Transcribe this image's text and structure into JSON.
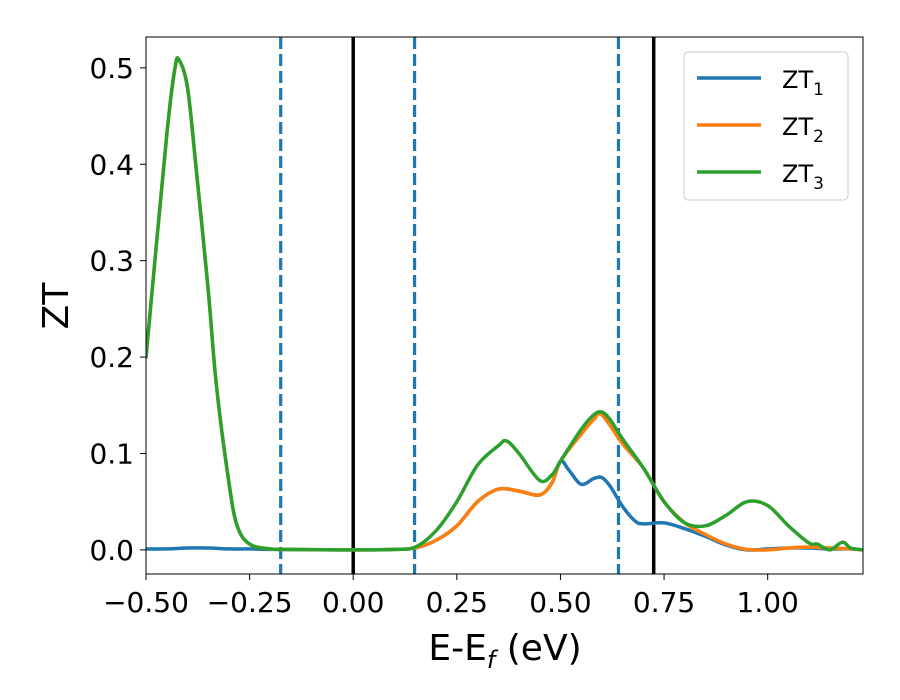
{
  "chart_data": {
    "type": "line",
    "xlabel": "E-E",
    "xlabel_sub": "f",
    "xlabel_unit": " (eV)",
    "ylabel": "ZT",
    "xlim": [
      -0.5,
      1.23
    ],
    "ylim": [
      -0.025,
      0.532
    ],
    "xticks": [
      -0.5,
      -0.25,
      0.0,
      0.25,
      0.5,
      0.75,
      1.0
    ],
    "xtick_labels": [
      "−0.50",
      "−0.25",
      "0.00",
      "0.25",
      "0.50",
      "0.75",
      "1.00"
    ],
    "yticks": [
      0.0,
      0.1,
      0.2,
      0.3,
      0.4,
      0.5
    ],
    "ytick_labels": [
      "0.0",
      "0.1",
      "0.2",
      "0.3",
      "0.4",
      "0.5"
    ],
    "grid": false,
    "legend_position": "top-right",
    "series": [
      {
        "name": "ZT",
        "name_sub": "1",
        "color": "#1f77b4",
        "x": [
          -0.5,
          -0.45,
          -0.4,
          -0.35,
          -0.3,
          -0.25,
          -0.2,
          -0.15,
          -0.1,
          0.0,
          0.1,
          0.15,
          0.2,
          0.25,
          0.3,
          0.35,
          0.4,
          0.45,
          0.48,
          0.5,
          0.52,
          0.55,
          0.58,
          0.6,
          0.62,
          0.65,
          0.68,
          0.7,
          0.75,
          0.8,
          0.85,
          0.9,
          0.95,
          1.0,
          1.05,
          1.1,
          1.15,
          1.2,
          1.23
        ],
        "y": [
          0.001,
          0.001,
          0.002,
          0.002,
          0.001,
          0.001,
          0.0005,
          0.0003,
          0.0002,
          0.0,
          0.0005,
          0.002,
          0.01,
          0.025,
          0.05,
          0.063,
          0.061,
          0.057,
          0.07,
          0.092,
          0.083,
          0.068,
          0.074,
          0.075,
          0.066,
          0.045,
          0.03,
          0.027,
          0.028,
          0.022,
          0.014,
          0.005,
          0.0,
          0.001,
          0.002,
          0.002,
          0.001,
          0.001,
          0.0
        ]
      },
      {
        "name": "ZT",
        "name_sub": "2",
        "color": "#ff7f0e",
        "x": [
          -0.5,
          -0.45,
          -0.43,
          -0.42,
          -0.4,
          -0.38,
          -0.35,
          -0.33,
          -0.3,
          -0.28,
          -0.25,
          -0.2,
          -0.15,
          -0.1,
          0.0,
          0.1,
          0.15,
          0.2,
          0.25,
          0.3,
          0.35,
          0.4,
          0.45,
          0.48,
          0.5,
          0.55,
          0.58,
          0.6,
          0.65,
          0.7,
          0.75,
          0.8,
          0.85,
          0.9,
          0.95,
          1.0,
          1.05,
          1.1,
          1.15,
          1.2,
          1.23
        ],
        "y": [
          0.2,
          0.43,
          0.5,
          0.508,
          0.48,
          0.4,
          0.27,
          0.17,
          0.07,
          0.025,
          0.006,
          0.001,
          0.0005,
          0.0003,
          0.0,
          0.0005,
          0.002,
          0.01,
          0.025,
          0.05,
          0.063,
          0.061,
          0.057,
          0.07,
          0.092,
          0.12,
          0.135,
          0.14,
          0.11,
          0.085,
          0.05,
          0.028,
          0.016,
          0.006,
          0.0005,
          0.0,
          0.002,
          0.003,
          0.002,
          0.001,
          0.0
        ]
      },
      {
        "name": "ZT",
        "name_sub": "3",
        "color": "#2ca02c",
        "x": [
          -0.5,
          -0.45,
          -0.43,
          -0.42,
          -0.4,
          -0.38,
          -0.35,
          -0.33,
          -0.3,
          -0.28,
          -0.25,
          -0.2,
          -0.15,
          -0.1,
          0.0,
          0.1,
          0.15,
          0.2,
          0.25,
          0.3,
          0.35,
          0.37,
          0.4,
          0.45,
          0.48,
          0.5,
          0.55,
          0.58,
          0.6,
          0.62,
          0.65,
          0.7,
          0.75,
          0.8,
          0.85,
          0.9,
          0.95,
          1.0,
          1.05,
          1.1,
          1.12,
          1.15,
          1.18,
          1.2,
          1.23
        ],
        "y": [
          0.2,
          0.43,
          0.5,
          0.508,
          0.48,
          0.4,
          0.27,
          0.17,
          0.07,
          0.025,
          0.006,
          0.001,
          0.0005,
          0.0003,
          0.0,
          0.0005,
          0.003,
          0.02,
          0.05,
          0.088,
          0.108,
          0.113,
          0.1,
          0.072,
          0.078,
          0.092,
          0.125,
          0.14,
          0.143,
          0.135,
          0.115,
          0.085,
          0.05,
          0.028,
          0.025,
          0.036,
          0.05,
          0.046,
          0.025,
          0.007,
          0.006,
          0.0,
          0.008,
          0.002,
          0.0
        ]
      }
    ],
    "vlines": [
      {
        "x": -0.175,
        "style": "dashed",
        "color": "#1f77b4"
      },
      {
        "x": 0.0,
        "style": "solid",
        "color": "#000000"
      },
      {
        "x": 0.148,
        "style": "dashed",
        "color": "#1f77b4"
      },
      {
        "x": 0.64,
        "style": "dashed",
        "color": "#1f77b4"
      },
      {
        "x": 0.725,
        "style": "solid",
        "color": "#000000"
      }
    ]
  }
}
